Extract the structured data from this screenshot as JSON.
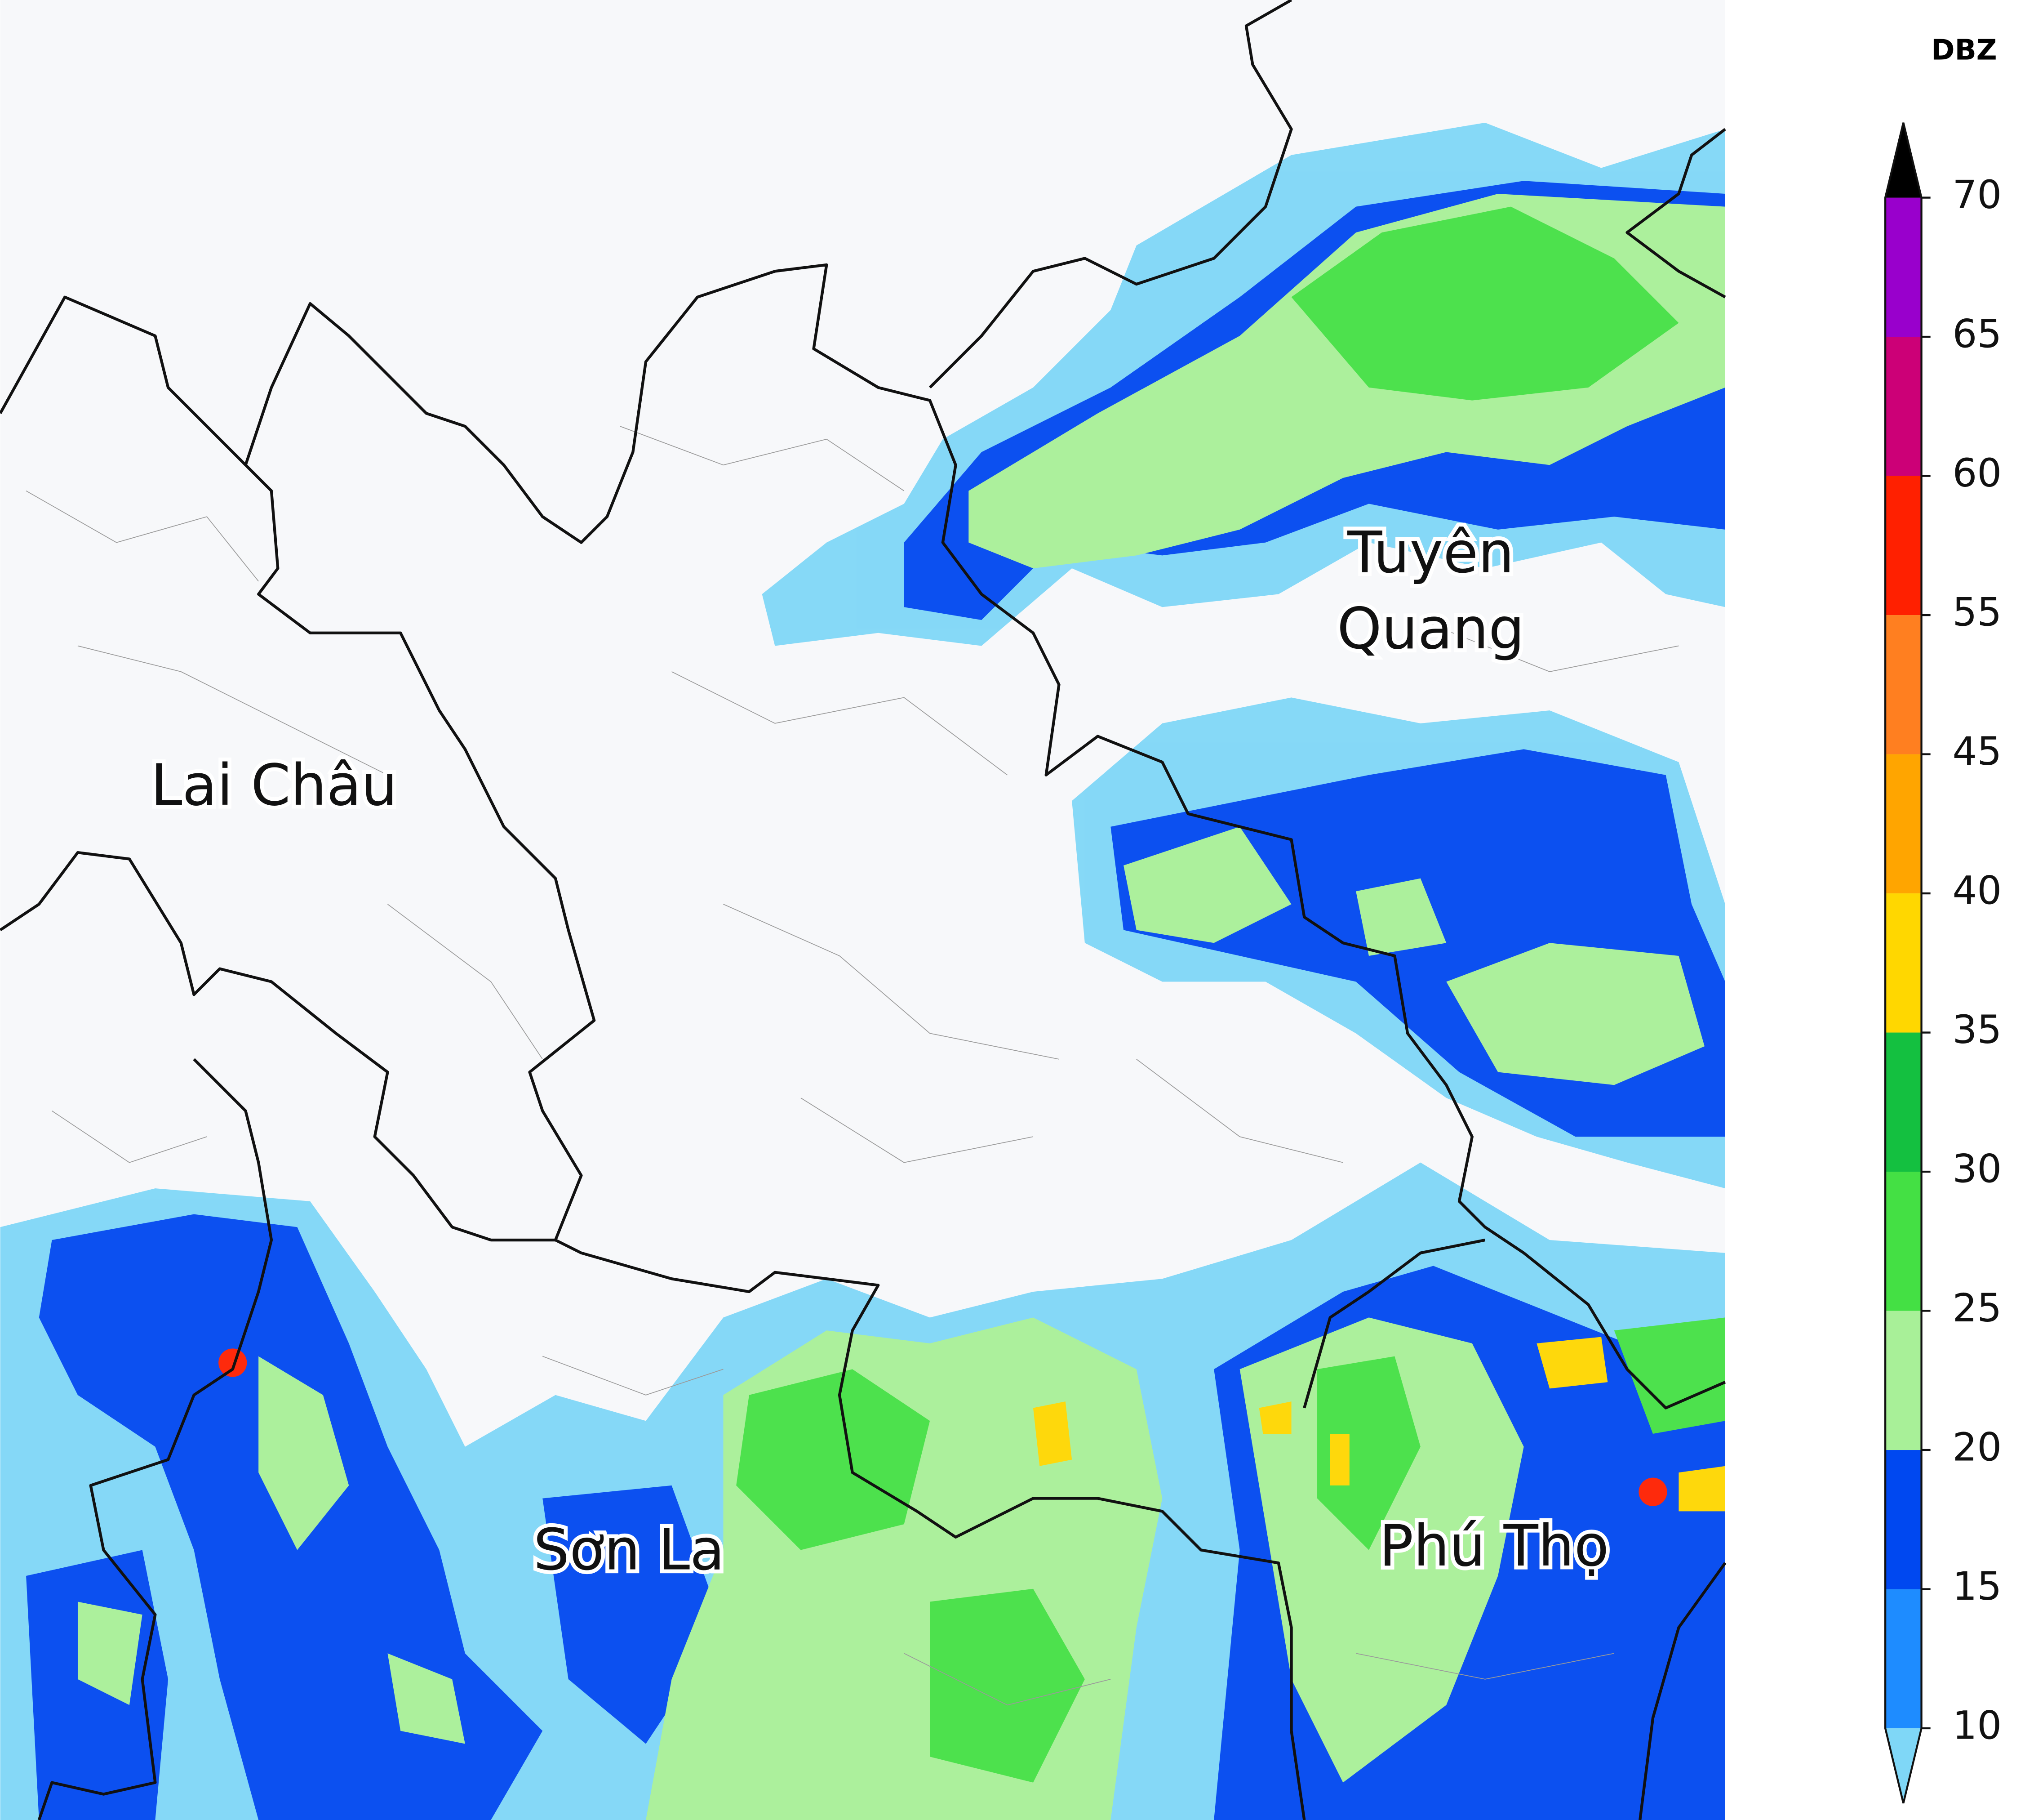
{
  "map": {
    "labels": [
      {
        "lines": [
          "Tuyên",
          "Quang"
        ]
      },
      {
        "lines": [
          "Lai Châu"
        ]
      },
      {
        "lines": [
          "Sơn La"
        ]
      },
      {
        "lines": [
          "Phú Thọ"
        ]
      }
    ]
  },
  "colorbar": {
    "title": "DBZ",
    "ticks": [
      10,
      15,
      20,
      25,
      30,
      35,
      40,
      45,
      55,
      60,
      65,
      70
    ],
    "colors": [
      "#1e8cff",
      "#0048f0",
      "#a8f098",
      "#44e044",
      "#14c040",
      "#ffd700",
      "#ffa500",
      "#ff7f20",
      "#ff2000",
      "#cc0077",
      "#9900cc"
    ],
    "under_color": "#7fd7f7",
    "over_color": "#000000"
  }
}
